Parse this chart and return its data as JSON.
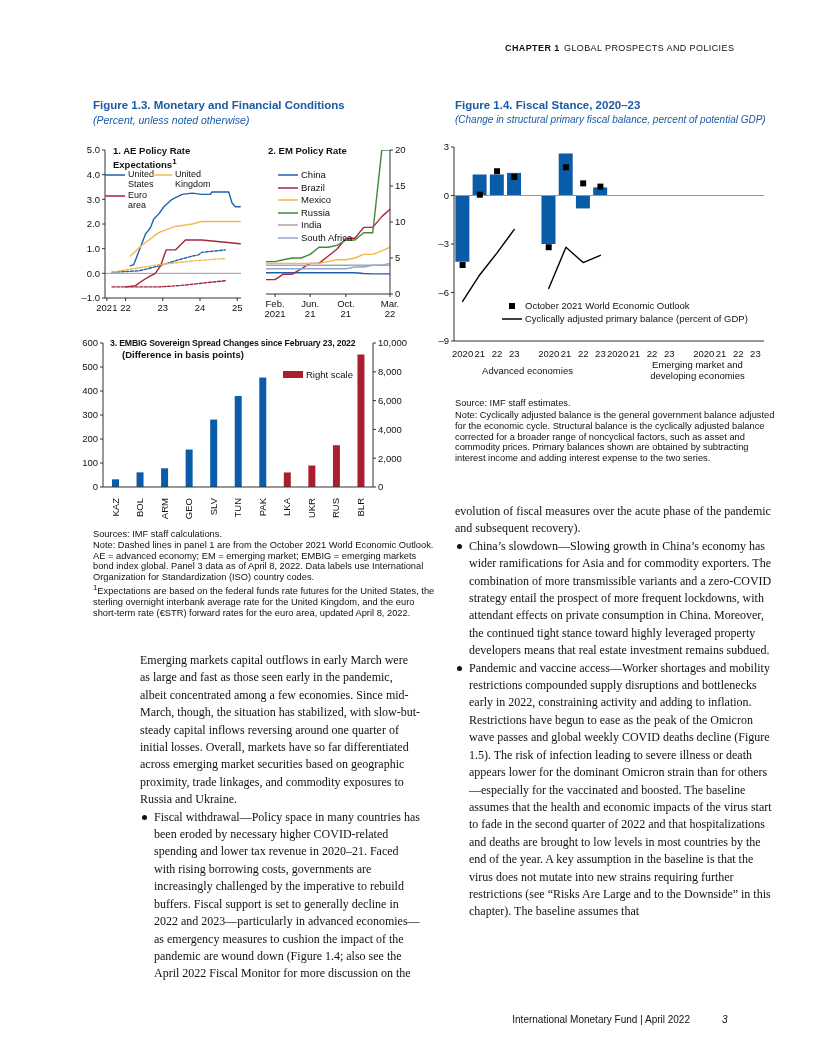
{
  "chart_data": [
    {
      "type": "other",
      "annotations": [
        "CHAPTER 1",
        "GLOBAL PROSPECTS AND POLICIES"
      ]
    },
    {
      "type": "other",
      "title": "Figure 1.3. Monetary and Financial Conditions",
      "subtitle": "(Percent, unless noted otherwise)"
    },
    {
      "type": "line",
      "title": "1. AE Policy Rate Expectations$^{1}$",
      "xlim": [
        2021.45,
        2025.1
      ],
      "xticks": [
        {
          "value": 2021.5,
          "label": "2021"
        },
        {
          "value": 2022,
          "label": "22"
        },
        {
          "value": 2023,
          "label": "23"
        },
        {
          "value": 2024,
          "label": "24"
        },
        {
          "value": 2025,
          "label": "25"
        }
      ],
      "ylim": [
        -1,
        5
      ],
      "yticks": [
        {
          "value": -1,
          "label": "–1.0"
        },
        {
          "value": 0,
          "label": "0.0"
        },
        {
          "value": 1,
          "label": "1.0"
        },
        {
          "value": 2,
          "label": "2.0"
        },
        {
          "value": 3,
          "label": "3.0"
        },
        {
          "value": 4,
          "label": "4.0"
        },
        {
          "value": 5,
          "label": "5.0"
        }
      ],
      "legend": "top left",
      "ref_lines": [
        {
          "axis": "y",
          "value": 0,
          "color": "#999999"
        }
      ],
      "series": [
        {
          "name": "United States",
          "color": "#1f62a8",
          "x": [
            2022.13,
            2022.22,
            2022.36,
            2022.54,
            2022.67,
            2022.76,
            2022.89,
            2023.03,
            2023.25,
            2023.52,
            2023.79,
            2024.05,
            2024.28,
            2024.32,
            2024.77,
            2024.86,
            2024.95,
            2025.08
          ],
          "values": [
            0.3,
            0.35,
            0.9,
            1.6,
            1.85,
            2.2,
            2.4,
            2.7,
            3.0,
            3.2,
            3.25,
            3.2,
            3.2,
            3.3,
            3.3,
            2.85,
            2.7,
            2.7
          ]
        },
        {
          "name": "United Kingdom",
          "color": "#f0b955",
          "x": [
            2022.13,
            2022.45,
            2022.89,
            2023.34,
            2023.79,
            2024.05,
            2024.5,
            2025.08
          ],
          "values": [
            0.7,
            1.15,
            1.65,
            1.9,
            2.0,
            2.1,
            2.1,
            2.1
          ]
        },
        {
          "name": "Euro area",
          "color": "#a8233a",
          "x": [
            2022.0,
            2022.27,
            2022.45,
            2022.67,
            2022.8,
            2022.94,
            2023.09,
            2023.34,
            2023.61,
            2024.05,
            2025.08
          ],
          "values": [
            -0.55,
            -0.5,
            -0.3,
            -0.1,
            0.0,
            0.3,
            0.95,
            0.95,
            1.35,
            1.35,
            1.2
          ]
        },
        {
          "color": "#1f62a8",
          "line_style": "dashed",
          "x": [
            2021.64,
            2022.36,
            2022.89,
            2023.43,
            2023.79,
            2023.96,
            2024.05,
            2024.68
          ],
          "values": [
            0.05,
            0.1,
            0.3,
            0.55,
            0.7,
            0.75,
            0.85,
            0.95
          ]
        },
        {
          "color": "#f0b955",
          "line_style": "dashed",
          "x": [
            2021.64,
            2022.89,
            2023.79,
            2024.68
          ],
          "values": [
            0.05,
            0.35,
            0.5,
            0.6
          ]
        },
        {
          "color": "#a8233a",
          "line_style": "dashed",
          "x": [
            2021.64,
            2022.89,
            2023.43,
            2024.05,
            2024.68
          ],
          "values": [
            -0.55,
            -0.55,
            -0.5,
            -0.4,
            -0.3
          ]
        }
      ]
    },
    {
      "type": "line",
      "title": "2. EM Policy Rate",
      "x": [
        "2021-01",
        "2021-02",
        "2021-03",
        "2021-04",
        "2021-05",
        "2021-06",
        "2021-07",
        "2021-08",
        "2021-09",
        "2021-10",
        "2021-11",
        "2021-12",
        "2022-01",
        "2022-02",
        "2022-03"
      ],
      "xlim": [
        "2021-01",
        "2022-03"
      ],
      "xticks": [
        {
          "value": "2021-02",
          "label": "Feb.\n2021"
        },
        {
          "value": "2021-06",
          "label": "Jun.\n21"
        },
        {
          "value": "2021-10",
          "label": "Oct.\n21"
        },
        {
          "value": "2022-03",
          "label": "Mar.\n22"
        }
      ],
      "ylim": [
        0,
        20
      ],
      "yticks": [
        0,
        5,
        10,
        15,
        20
      ],
      "legend": "top left",
      "series": [
        {
          "name": "China",
          "color": "#1f5fa8",
          "values": [
            2.95,
            2.95,
            2.95,
            2.95,
            2.95,
            2.95,
            2.95,
            2.95,
            2.95,
            2.95,
            2.95,
            2.85,
            2.8,
            2.8,
            2.8
          ]
        },
        {
          "name": "Brazil",
          "color": "#b0243a",
          "values": [
            2,
            2,
            2.75,
            2.75,
            3.5,
            4.25,
            4.25,
            5.25,
            6.25,
            7.75,
            7.75,
            9.25,
            9.25,
            10.75,
            11.75
          ]
        },
        {
          "name": "Mexico",
          "color": "#f2b84b",
          "values": [
            4.25,
            4.25,
            4.25,
            4.25,
            4.25,
            4.25,
            4.25,
            4.5,
            4.75,
            4.75,
            5,
            5.5,
            5.5,
            6,
            6.5
          ]
        },
        {
          "name": "Russia",
          "color": "#3f8a3a",
          "values": [
            4.5,
            4.5,
            4.75,
            5,
            5,
            5.5,
            6.5,
            6.5,
            6.75,
            7.5,
            7.5,
            8.5,
            8.5,
            20,
            20
          ]
        },
        {
          "name": "India",
          "color": "#a6a6a6",
          "values": [
            4,
            4,
            4,
            4,
            4,
            4,
            4,
            4,
            4,
            4,
            4,
            4,
            4,
            4,
            4
          ]
        },
        {
          "name": "South Africa",
          "color": "#8fa7d6",
          "values": [
            3.5,
            3.5,
            3.5,
            3.5,
            3.5,
            3.5,
            3.5,
            3.5,
            3.5,
            3.5,
            3.75,
            3.75,
            4,
            4,
            4.25
          ]
        }
      ]
    },
    {
      "type": "bar",
      "title": "3. EMBIG Sovereign Spread Changes since February 23, 2022",
      "subtitle": "(Difference in basis points)",
      "categories": [
        "KAZ",
        "BOL",
        "ARM",
        "GEO",
        "SLV",
        "TUN",
        "PAK",
        "LKA",
        "UKR",
        "RUS",
        "BLR"
      ],
      "ylim": [
        0,
        600
      ],
      "yticks": [
        0,
        100,
        200,
        300,
        400,
        500,
        600
      ],
      "y2lim": [
        0,
        10000
      ],
      "y2ticks": [
        0,
        {
          "value": 2000,
          "label": "2,000"
        },
        {
          "value": 4000,
          "label": "4,000"
        },
        {
          "value": 6000,
          "label": "6,000"
        },
        {
          "value": 8000,
          "label": "8,000"
        },
        {
          "value": 10000,
          "label": "10,000"
        }
      ],
      "legend": "top right",
      "series": [
        {
          "color": "#0a5ca8",
          "values": [
            32,
            61,
            78,
            156,
            281,
            379,
            456,
            null,
            null,
            null,
            null
          ]
        },
        {
          "name": "Right scale",
          "color": "#a8202f",
          "axis": "y2",
          "values": [
            null,
            null,
            null,
            null,
            null,
            null,
            null,
            1010,
            1490,
            2900,
            9200
          ]
        }
      ]
    },
    {
      "type": "other",
      "annotations": [
        "Sources: IMF staff calculations.",
        "Note: Dashed lines in panel 1 are from the October 2021 World Economic Outlook. AE = advanced economy; EM = emerging market; EMBIG = emerging markets bond index global. Panel 3 data as of April 8, 2022. Data labels use International Organization for Standardization (ISO) country codes.",
        "$^{1}$Expectations are based on the federal funds rate futures for the United States, the sterling overnight interbank average rate for the United Kingdom, and the euro short-term rate (€STR) forward rates for the euro area, updated April 8, 2022."
      ]
    },
    {
      "type": "bar",
      "title": "Figure 1.4. Fiscal Stance, 2020–23",
      "subtitle": "(Change in structural primary fiscal balance, percent of potential GDP)",
      "categories": [
        "2020",
        "21",
        "22",
        "23",
        null,
        "2020",
        "21",
        "22",
        "23"
      ],
      "ylim": [
        -9,
        3
      ],
      "yticks": [
        {
          "value": -9,
          "label": "–9"
        },
        {
          "value": -6,
          "label": "–6"
        },
        {
          "value": -3,
          "label": "–3"
        },
        0,
        3
      ],
      "legend": "bottom",
      "ref_lines": [
        {
          "axis": "y",
          "value": 0,
          "color": "#999999"
        }
      ],
      "annotations": [
        "Advanced economies",
        "Emerging market and developing economies",
        "Source: IMF staff estimates.",
        "Note: Cyclically adjusted balance is the general government balance adjusted for the economic cycle. Structural balance is the cyclically adjusted balance corrected for a broader range of noncyclical factors, such as asset and commodity prices. Primary balances shown are obtained by subtracting interest income and adding interest expense to the two series."
      ],
      "series": [
        {
          "color": "#0a5ca8",
          "values": [
            -4.1,
            1.3,
            1.3,
            1.4,
            null,
            -3.0,
            2.6,
            -0.8,
            0.5
          ]
        },
        {
          "type": "scatter",
          "name": "October 2021 World Economic Outlook",
          "color": "#000000",
          "marker": "square",
          "values": [
            -4.3,
            0.05,
            1.5,
            1.15,
            null,
            -3.2,
            1.75,
            0.75,
            0.55
          ]
        },
        {
          "type": "line",
          "name": "Cyclically adjusted primary balance (percent of GDP)",
          "color": "#000000",
          "values": [
            -6.55,
            -4.9,
            -3.55,
            -2.1,
            null,
            -5.75,
            -3.2,
            -4.15,
            -3.7
          ]
        }
      ]
    },
    {
      "type": "other",
      "annotations": [
        "Emerging markets capital outflows in early March were as large and fast as those seen early in the pandemic, albeit concentrated among a few economies. Since mid-March, though, the situation has stabilized, with slow-but-steady capital inflows reversing around one quarter of initial losses. Overall, markets have so far differentiated across emerging market securities based on geographic proximity, trade linkages, and commodity exposures to Russia and Ukraine.",
        "Fiscal withdrawal—Policy space in many countries has been eroded by necessary higher COVID-related spending and lower tax revenue in 2020–21. Faced with rising borrowing costs, governments are increasingly challenged by the imperative to rebuild buffers. Fiscal support is set to generally decline in 2022 and 2023—particularly in advanced economies—as emergency measures to cushion the impact of the pandemic are wound down (Figure 1.4; also see the April 2022 Fiscal Monitor for more discussion on the",
        "evolution of fiscal measures over the acute phase of the pandemic and subsequent recovery).",
        "China’s slowdown—Slowing growth in China’s economy has wider ramifications for Asia and for commodity exporters. The combination of more transmissible variants and a zero-COVID strategy entail the prospect of more frequent lockdowns, with attendant effects on private consumption in China. Moreover, the continued tight stance toward highly leveraged property developers means that real estate investment remains subdued.",
        "Pandemic and vaccine access—Worker shortages and mobility restrictions compounded supply disruptions and bottlenecks early in 2022, constraining activity and adding to inflation. Restrictions have begun to ease as the peak of the Omicron wave passes and global weekly COVID deaths decline (Figure 1.5). The risk of infection leading to severe illness or death appears lower for the dominant Omicron strain than for others—especially for the vaccinated and boosted. The baseline assumes that the health and economic impacts of the virus start to fade in the second quarter of 2022 and that hospitalizations and deaths are brought to low levels in most countries by the end of the year. A key assumption in the baseline is that the virus does not mutate into new strains requiring further restrictions (see “Risks Are Large and to the Downside” in this chapter). The baseline assumes that",
        "International Monetary Fund | April 2022",
        "3"
      ]
    }
  ]
}
